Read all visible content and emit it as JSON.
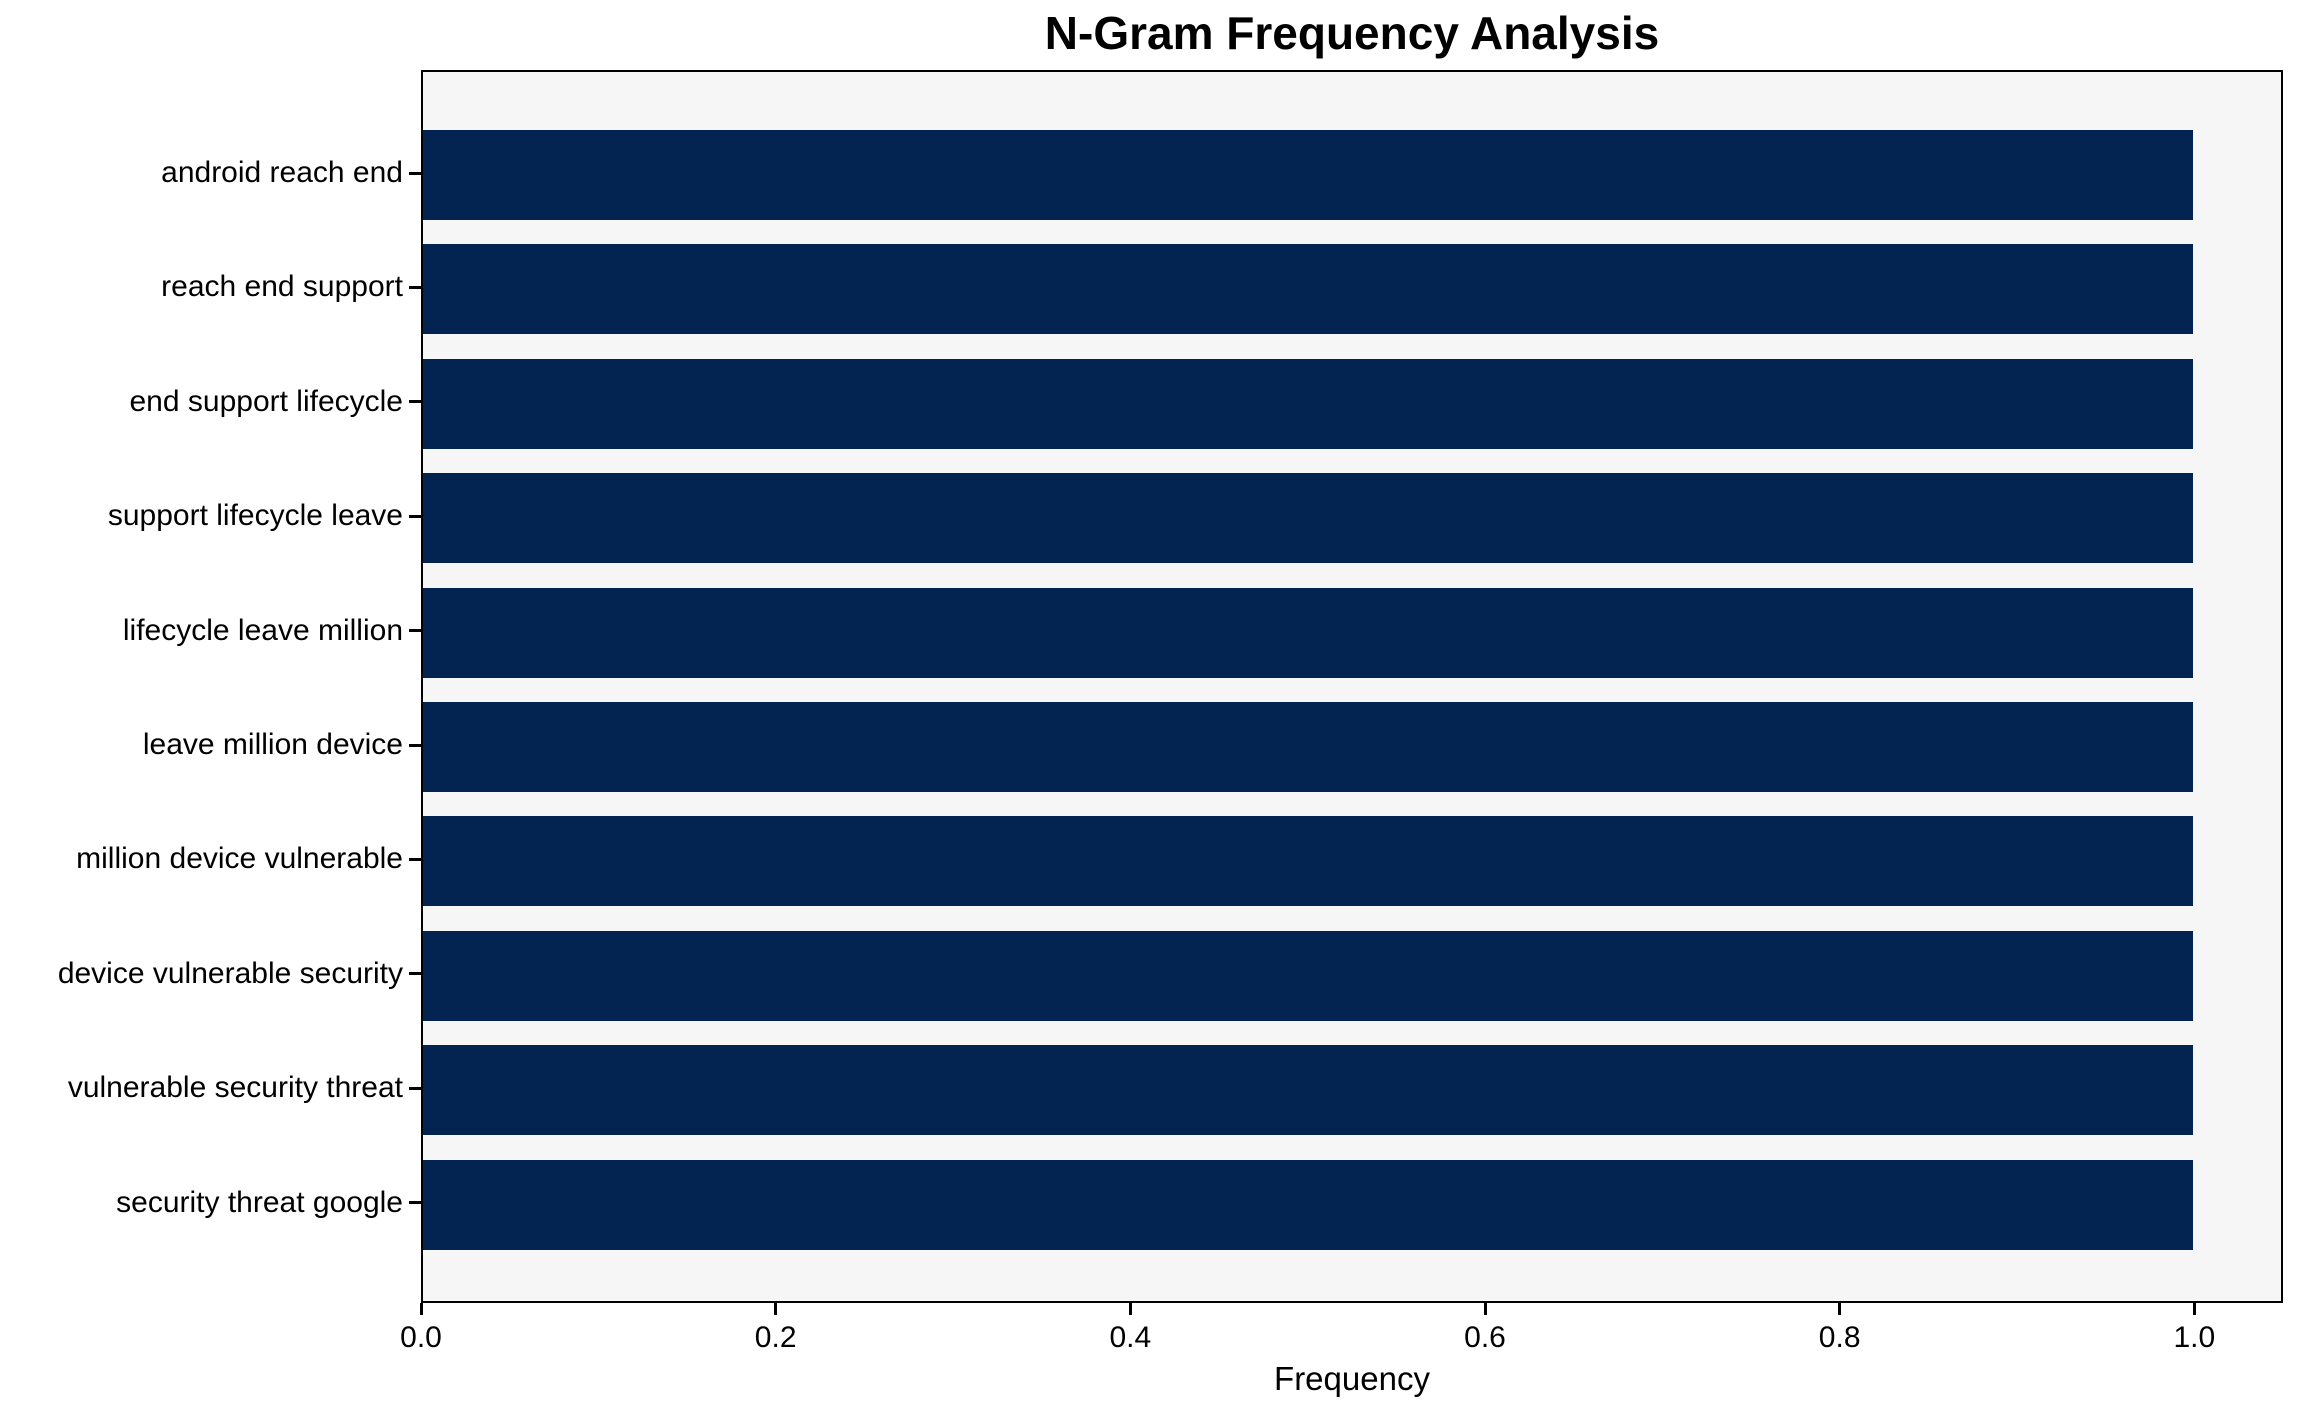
{
  "chart_data": {
    "type": "bar",
    "orientation": "horizontal",
    "title": "N-Gram Frequency Analysis",
    "xlabel": "Frequency",
    "ylabel": "",
    "categories": [
      "android reach end",
      "reach end support",
      "end support lifecycle",
      "support lifecycle leave",
      "lifecycle leave million",
      "leave million device",
      "million device vulnerable",
      "device vulnerable security",
      "vulnerable security threat",
      "security threat google"
    ],
    "values": [
      1.0,
      1.0,
      1.0,
      1.0,
      1.0,
      1.0,
      1.0,
      1.0,
      1.0,
      1.0
    ],
    "xticks": [
      "0.0",
      "0.2",
      "0.4",
      "0.6",
      "0.8",
      "1.0"
    ],
    "xtick_values": [
      0.0,
      0.2,
      0.4,
      0.6,
      0.8,
      1.0
    ],
    "xlim": [
      0,
      1.05
    ],
    "grid": false,
    "legend": null,
    "colors": {
      "bar": "#032450",
      "plot_background": "#f6f6f7",
      "figure_background": "#ffffff",
      "spine": "#000000",
      "text": "#000000"
    }
  }
}
